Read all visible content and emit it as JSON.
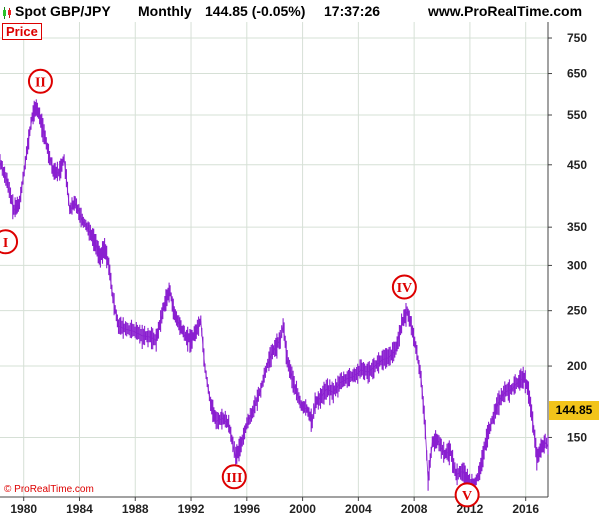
{
  "header": {
    "symbol": "Spot GBP/JPY",
    "period": "Monthly",
    "price_change": "144.85 (-0.05%)",
    "time": "17:37:26",
    "site": "www.ProRealTime.com"
  },
  "price_tag": "Price",
  "current_price": "144.85",
  "copyright": "© ProRealTime.com",
  "colors": {
    "series": "#8a1fd0",
    "wave_labels": "#dd0000",
    "grid": "#d6e0d6",
    "badge": "#f2c41a"
  },
  "chart_data": {
    "type": "line",
    "y_scale": "log",
    "ylim": [
      118,
      800
    ],
    "xlim": [
      1978.3,
      2017.6
    ],
    "y_ticks": [
      750,
      650,
      550,
      450,
      350,
      300,
      250,
      200,
      150
    ],
    "x_ticks": [
      1980,
      1984,
      1988,
      1992,
      1996,
      2000,
      2004,
      2008,
      2012,
      2016
    ],
    "grid": true,
    "series": [
      {
        "x": [
          1978.3,
          1978.8,
          1979.3,
          1979.7,
          1980.2,
          1980.6,
          1980.9,
          1981.3,
          1981.7,
          1982.1,
          1982.5,
          1982.9,
          1983.3,
          1983.7,
          1984.2,
          1984.7,
          1985.1,
          1985.5,
          1985.8,
          1986.1,
          1986.4,
          1986.8,
          1987.3,
          1987.9,
          1988.5,
          1989.0,
          1989.5,
          1989.9,
          1990.2,
          1990.5,
          1990.8,
          1991.2,
          1991.6,
          1992.0,
          1992.3,
          1992.7,
          1993.0,
          1993.4,
          1993.8,
          1994.3,
          1994.7,
          1995.0,
          1995.2,
          1995.6,
          1996.0,
          1996.5,
          1997.0,
          1997.5,
          1998.0,
          1998.4,
          1998.6,
          1998.9,
          1999.4,
          1999.9,
          2000.3,
          2000.7,
          2000.9,
          2001.2,
          2001.7,
          2002.2,
          2002.7,
          2003.2,
          2003.7,
          2004.2,
          2004.7,
          2005.2,
          2005.7,
          2006.2,
          2006.7,
          2007.1,
          2007.5,
          2007.8,
          2008.2,
          2008.5,
          2008.8,
          2009.0,
          2009.3,
          2009.7,
          2010.2,
          2010.6,
          2011.0,
          2011.5,
          2011.9,
          2012.3,
          2012.7,
          2013.1,
          2013.5,
          2014.0,
          2014.5,
          2015.0,
          2015.5,
          2015.9,
          2016.2,
          2016.5,
          2016.8,
          2017.1,
          2017.4,
          2017.6
        ],
        "values": [
          455,
          420,
          375,
          385,
          470,
          545,
          568,
          530,
          480,
          440,
          435,
          460,
          375,
          385,
          360,
          345,
          330,
          310,
          322,
          300,
          262,
          235,
          232,
          230,
          226,
          225,
          222,
          245,
          262,
          270,
          246,
          235,
          225,
          222,
          228,
          240,
          198,
          172,
          160,
          162,
          158,
          146,
          138,
          146,
          158,
          168,
          182,
          202,
          215,
          222,
          236,
          205,
          185,
          170,
          168,
          160,
          172,
          175,
          182,
          180,
          187,
          190,
          192,
          197,
          195,
          200,
          205,
          207,
          214,
          236,
          249,
          235,
          210,
          190,
          155,
          126,
          147,
          148,
          140,
          142,
          129,
          131,
          125,
          124,
          130,
          146,
          158,
          172,
          180,
          182,
          188,
          191,
          180,
          160,
          138,
          143,
          147,
          144.85
        ]
      }
    ],
    "annotations": [
      {
        "label": "I",
        "x": 1978.7,
        "y": 330,
        "style": "circle"
      },
      {
        "label": "II",
        "x": 1981.2,
        "y": 630,
        "style": "circle"
      },
      {
        "label": "III",
        "x": 1995.1,
        "y": 128,
        "style": "circle"
      },
      {
        "label": "IV",
        "x": 2007.3,
        "y": 275,
        "style": "circle"
      },
      {
        "label": "V",
        "x": 2011.8,
        "y": 119,
        "style": "circle"
      }
    ]
  }
}
